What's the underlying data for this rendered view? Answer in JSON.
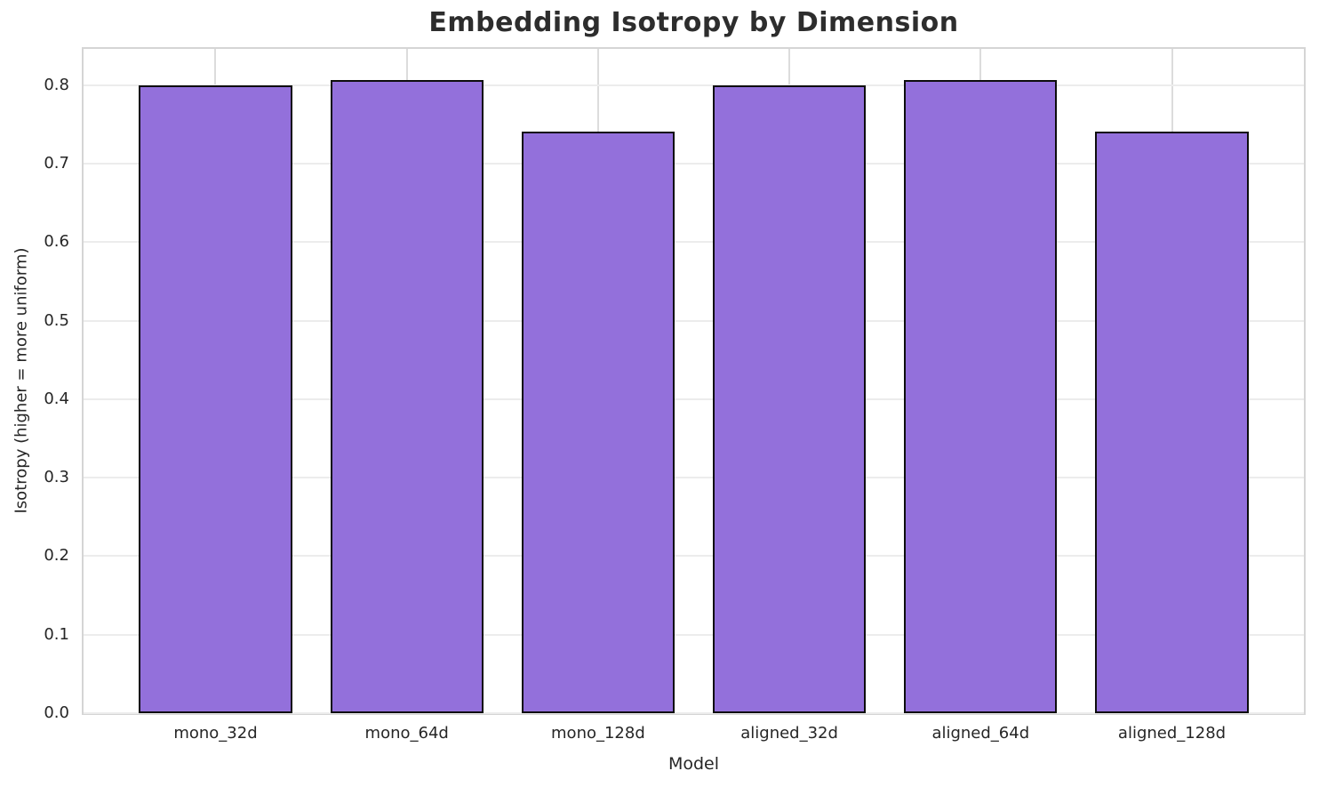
{
  "chart_data": {
    "type": "bar",
    "title": "Embedding Isotropy by Dimension",
    "xlabel": "Model",
    "ylabel": "Isotropy (higher = more uniform)",
    "categories": [
      "mono_32d",
      "mono_64d",
      "mono_128d",
      "aligned_32d",
      "aligned_64d",
      "aligned_128d"
    ],
    "values": [
      0.8,
      0.806,
      0.741,
      0.8,
      0.806,
      0.741
    ],
    "yticks": [
      0.0,
      0.1,
      0.2,
      0.3,
      0.4,
      0.5,
      0.6,
      0.7,
      0.8
    ],
    "ytick_labels": [
      "0.0",
      "0.1",
      "0.2",
      "0.3",
      "0.4",
      "0.5",
      "0.6",
      "0.7",
      "0.8"
    ],
    "ylim": [
      0,
      0.846
    ],
    "xlim": [
      -0.69,
      5.69
    ],
    "bar_width_units": 0.8,
    "grid": true,
    "legend": "none",
    "colors": {
      "bar_fill": "#9370DB",
      "bar_edge": "#0d0d0d",
      "grid_horizontal": "#ececec",
      "grid_vertical": "#dcdcdc",
      "plot_frame": "#d5d5d5",
      "text": "#262626",
      "title_text": "#2d2d2d",
      "background": "#ffffff"
    }
  }
}
